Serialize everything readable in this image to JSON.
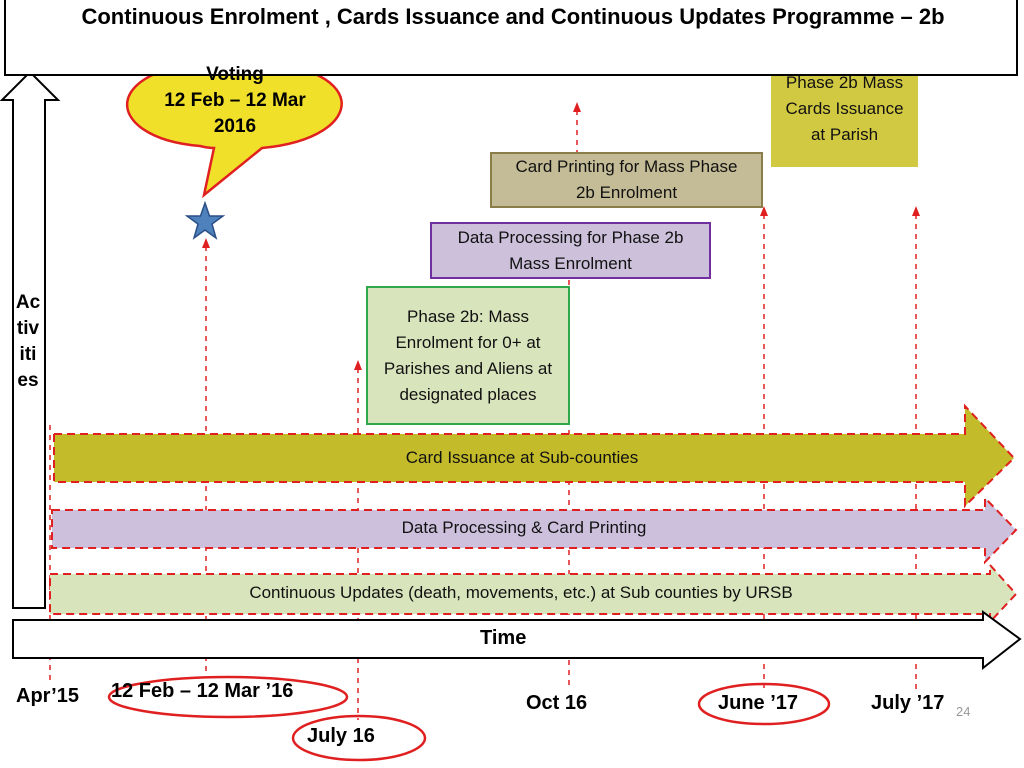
{
  "title": "Continuous Enrolment , Cards Issuance and Continuous Updates Programme – 2b",
  "y_axis_label_lines": [
    "Ac",
    "tiv",
    "iti",
    "es"
  ],
  "x_axis_label": "Time",
  "callout": {
    "line1": "Voting",
    "line2": "12 Feb – 12 Mar",
    "line3": "2016"
  },
  "boxes": {
    "phase2b_mass_cards": [
      "Phase 2b Mass",
      "Cards Issuance",
      "at Parish"
    ],
    "card_printing": [
      "Card Printing for Mass Phase",
      "2b Enrolment"
    ],
    "data_processing": [
      "Data Processing for Phase 2b",
      "Mass Enrolment"
    ],
    "phase2b_enrolment": [
      "Phase 2b: Mass",
      "Enrolment for  0+ at",
      "Parishes and Aliens at",
      "designated places"
    ]
  },
  "bars": {
    "card_issuance": "Card Issuance at Sub-counties",
    "data_processing": "Data Processing & Card Printing",
    "continuous_updates": "Continuous Updates (death, movements, etc.) at Sub counties by URSB"
  },
  "timeline": {
    "apr15": "Apr’15",
    "feb_mar16": "12 Feb – 12 Mar  ’16",
    "july16": "July 16",
    "oct16": "Oct 16",
    "june17": "June ’17",
    "july17": "July ’17"
  },
  "page_number": "24",
  "colors": {
    "olive_bar": "#c4bb2a",
    "lavender_bar": "#ccc0dd",
    "green_bar": "#d8e4bc",
    "dashed_red": "#e02020",
    "callout_fill": "#f1e02a",
    "card_print_fill": "#c4bc96",
    "data_proc_fill": "#ccc0da",
    "enrol_border": "#2ea84a",
    "mass_cards_fill": "#d2c942",
    "star_fill": "#4f81bd"
  }
}
